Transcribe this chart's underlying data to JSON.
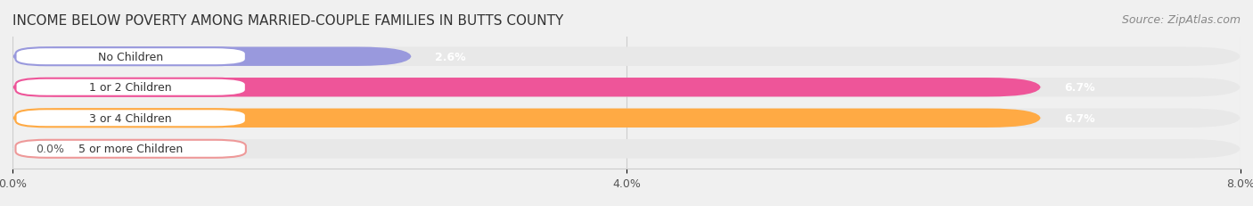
{
  "title": "INCOME BELOW POVERTY AMONG MARRIED-COUPLE FAMILIES IN BUTTS COUNTY",
  "source": "Source: ZipAtlas.com",
  "categories": [
    "No Children",
    "1 or 2 Children",
    "3 or 4 Children",
    "5 or more Children"
  ],
  "values": [
    2.6,
    6.7,
    6.7,
    0.0
  ],
  "bar_colors": [
    "#9999dd",
    "#ee5599",
    "#ffaa44",
    "#ee9999"
  ],
  "label_colors": [
    "#9999dd",
    "#ee5599",
    "#ffaa44",
    "#ee9999"
  ],
  "xlim": [
    0,
    8.0
  ],
  "xticks": [
    0.0,
    4.0,
    8.0
  ],
  "xticklabels": [
    "0.0%",
    "4.0%",
    "8.0%"
  ],
  "bar_height": 0.62,
  "background_color": "#f0f0f0",
  "bar_background_color": "#e8e8e8",
  "title_fontsize": 11,
  "source_fontsize": 9,
  "label_fontsize": 9,
  "value_fontsize": 9
}
